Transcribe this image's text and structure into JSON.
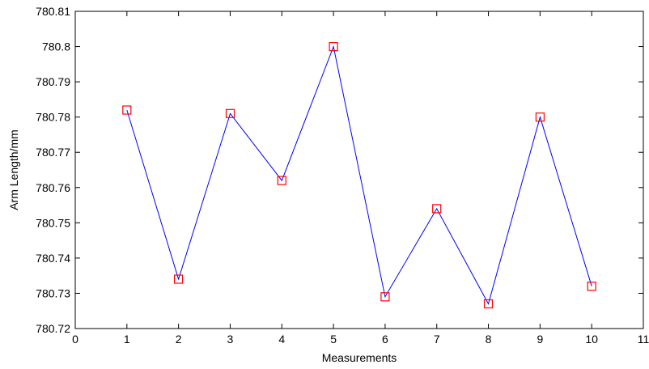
{
  "chart_data": {
    "type": "line",
    "title": "",
    "xlabel": "Measurements",
    "ylabel": "Arm Length/mm",
    "xlim": [
      0,
      11
    ],
    "ylim": [
      780.72,
      780.81
    ],
    "x_ticks": [
      "0",
      "1",
      "2",
      "3",
      "4",
      "5",
      "6",
      "7",
      "8",
      "9",
      "10",
      "11"
    ],
    "y_ticks": [
      "780.72",
      "780.73",
      "780.74",
      "780.75",
      "780.76",
      "780.77",
      "780.78",
      "780.79",
      "780.8",
      "780.81"
    ],
    "grid": false,
    "series": [
      {
        "x": [
          1,
          2,
          3,
          4,
          5,
          6,
          7,
          8,
          9,
          10
        ],
        "values": [
          780.782,
          780.734,
          780.781,
          780.762,
          780.8,
          780.729,
          780.754,
          780.727,
          780.78,
          780.732
        ],
        "line_color": "#0000FF",
        "marker": "square",
        "marker_color": "#FF0000"
      }
    ]
  }
}
